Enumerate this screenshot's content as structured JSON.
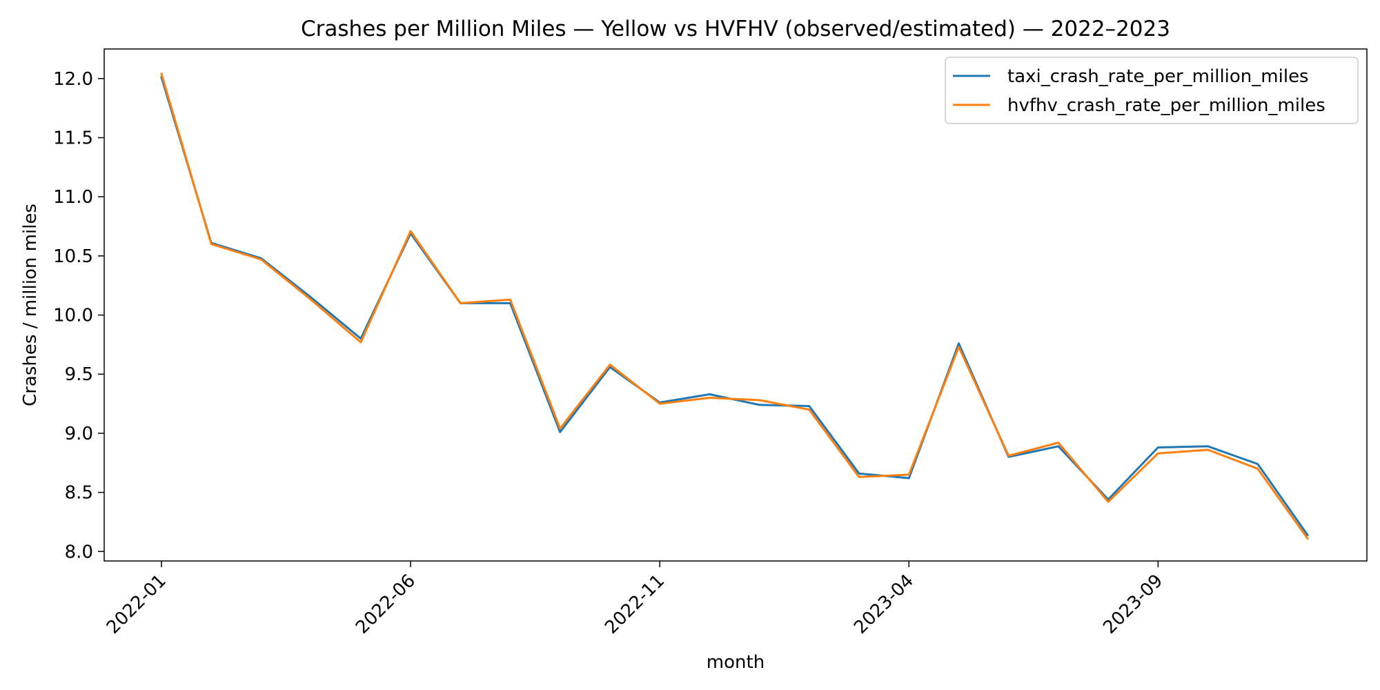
{
  "chart_data": {
    "type": "line",
    "title": "Crashes per Million Miles — Yellow vs HVFHV (observed/estimated) — 2022–2023",
    "xlabel": "month",
    "ylabel": "Crashes / million miles",
    "ylim": [
      7.92,
      12.25
    ],
    "grid": false,
    "legend_position": "top-right",
    "x": [
      "2022-01",
      "2022-02",
      "2022-03",
      "2022-04",
      "2022-05",
      "2022-06",
      "2022-07",
      "2022-08",
      "2022-09",
      "2022-10",
      "2022-11",
      "2022-12",
      "2023-01",
      "2023-02",
      "2023-03",
      "2023-04",
      "2023-05",
      "2023-06",
      "2023-07",
      "2023-08",
      "2023-09",
      "2023-10",
      "2023-11",
      "2023-12"
    ],
    "x_tick_labels": [
      "2022-01",
      "2022-06",
      "2022-11",
      "2023-04",
      "2023-09"
    ],
    "y_ticks": [
      8.0,
      8.5,
      9.0,
      9.5,
      10.0,
      10.5,
      11.0,
      11.5,
      12.0
    ],
    "y_tick_labels": [
      "8.0",
      "8.5",
      "9.0",
      "9.5",
      "10.0",
      "10.5",
      "11.0",
      "11.5",
      "12.0"
    ],
    "series": [
      {
        "name": "taxi_crash_rate_per_million_miles",
        "color": "#1f77b4",
        "values": [
          12.01,
          10.61,
          10.48,
          10.15,
          9.8,
          10.69,
          10.1,
          10.1,
          9.01,
          9.56,
          9.26,
          9.33,
          9.24,
          9.23,
          8.66,
          8.62,
          9.76,
          8.8,
          8.89,
          8.44,
          8.88,
          8.89,
          8.74,
          8.14
        ]
      },
      {
        "name": "hvfhv_crash_rate_per_million_miles",
        "color": "#ff7f0e",
        "values": [
          12.04,
          10.6,
          10.47,
          10.13,
          9.77,
          10.71,
          10.1,
          10.13,
          9.04,
          9.58,
          9.25,
          9.3,
          9.28,
          9.2,
          8.63,
          8.65,
          9.73,
          8.81,
          8.92,
          8.42,
          8.83,
          8.86,
          8.7,
          8.11
        ]
      }
    ]
  }
}
